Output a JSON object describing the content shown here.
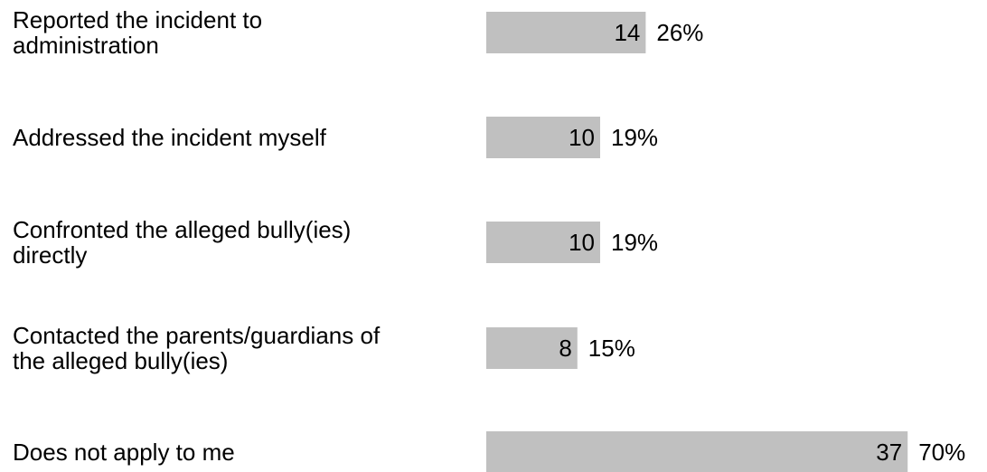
{
  "chart_data": {
    "type": "bar",
    "orientation": "horizontal",
    "categories": [
      "Reported the incident to administration",
      "Addressed the incident myself",
      "Confronted the alleged bully(ies) directly",
      "Contacted the parents/guardians of the alleged bully(ies)",
      "Does not apply to me"
    ],
    "category_lines": [
      [
        "Reported the incident to",
        "administration"
      ],
      [
        "Addressed the incident myself"
      ],
      [
        "Confronted the alleged bully(ies)",
        "directly"
      ],
      [
        "Contacted the parents/guardians of",
        "the alleged bully(ies)"
      ],
      [
        "Does not apply to me"
      ]
    ],
    "values": [
      14,
      10,
      10,
      8,
      37
    ],
    "percent_labels": [
      "26%",
      "19%",
      "19%",
      "15%",
      "70%"
    ],
    "title": "",
    "xlabel": "",
    "ylabel": "",
    "grid": false,
    "legend": "none",
    "colors": {
      "bar": "#c0c0c0",
      "text": "#000000",
      "background": "#ffffff"
    }
  }
}
